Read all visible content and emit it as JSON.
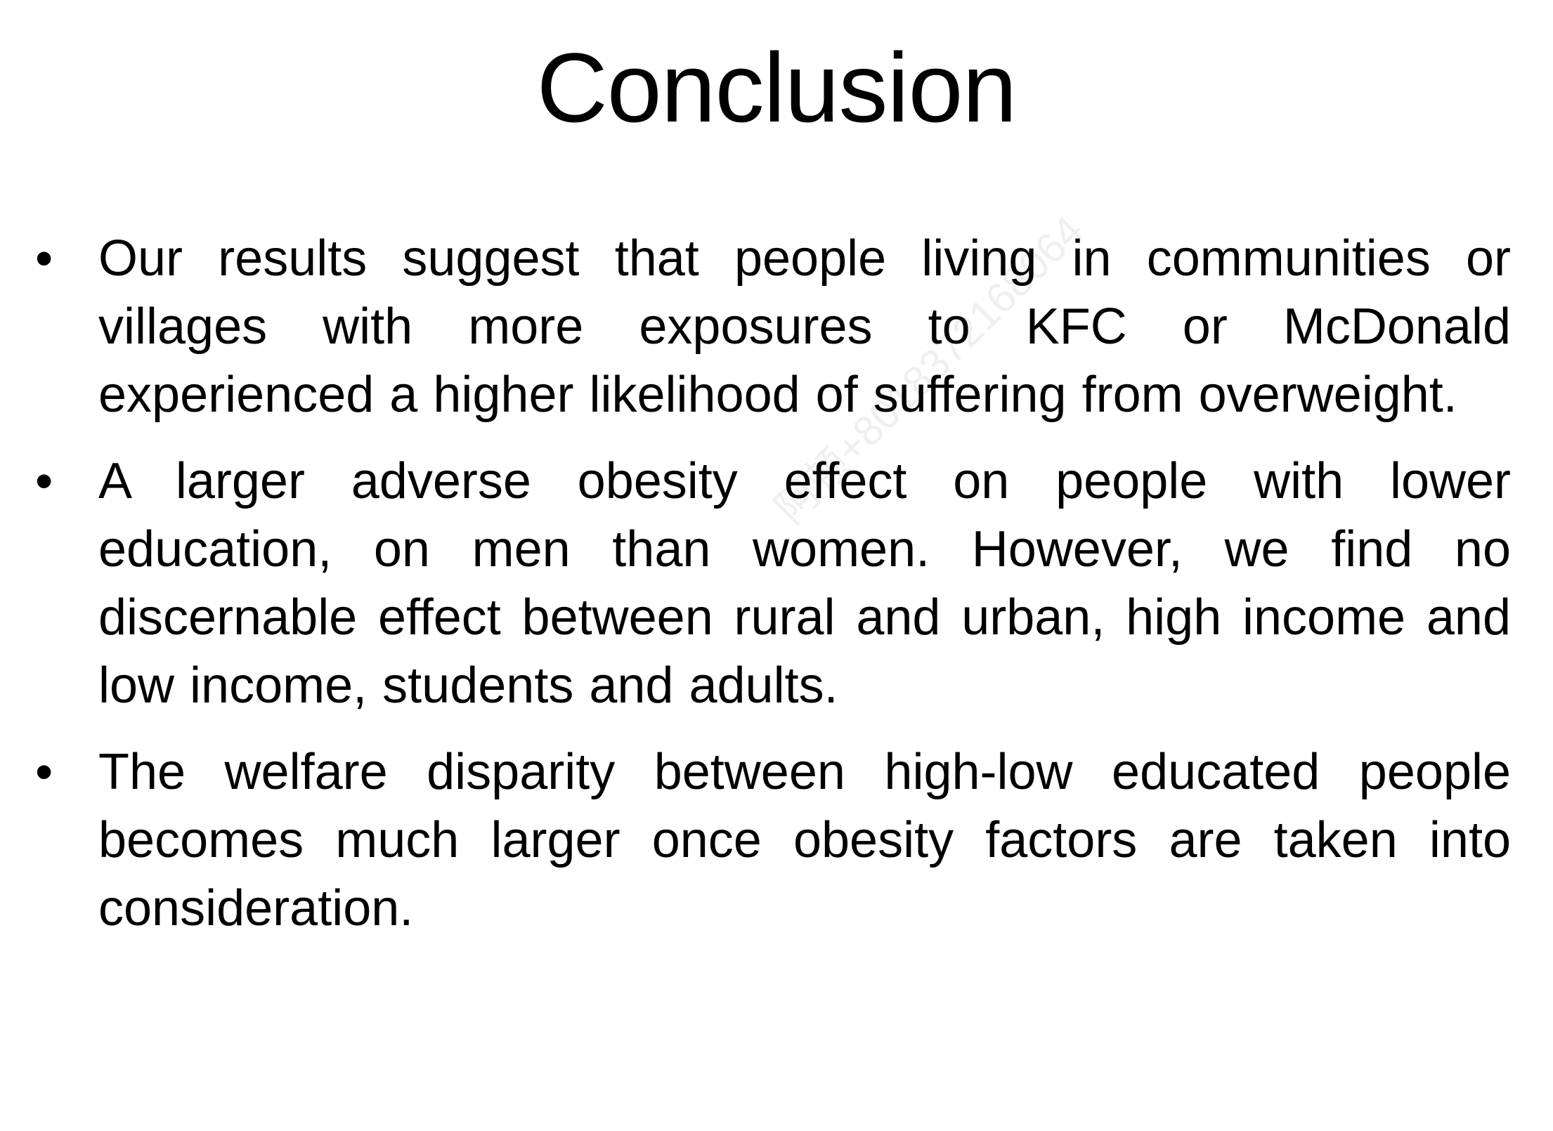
{
  "slide": {
    "title": "Conclusion",
    "bullets": [
      {
        "marker": "•",
        "text": "Our results suggest that people living in communities or villages with more exposures to KFC or McDonald experienced a higher likelihood of suffering from overweight."
      },
      {
        "marker": "•",
        "text": "A larger adverse obesity effect on people with lower education, on men than women. However, we find no discernable effect between rural and urban, high income and low income, students and adults."
      },
      {
        "marker": "•",
        "text": "The welfare disparity between high-low educated people becomes much larger once obesity factors are taken into consideration."
      }
    ]
  },
  "watermark": {
    "text": "阿顿+8018372168064"
  }
}
